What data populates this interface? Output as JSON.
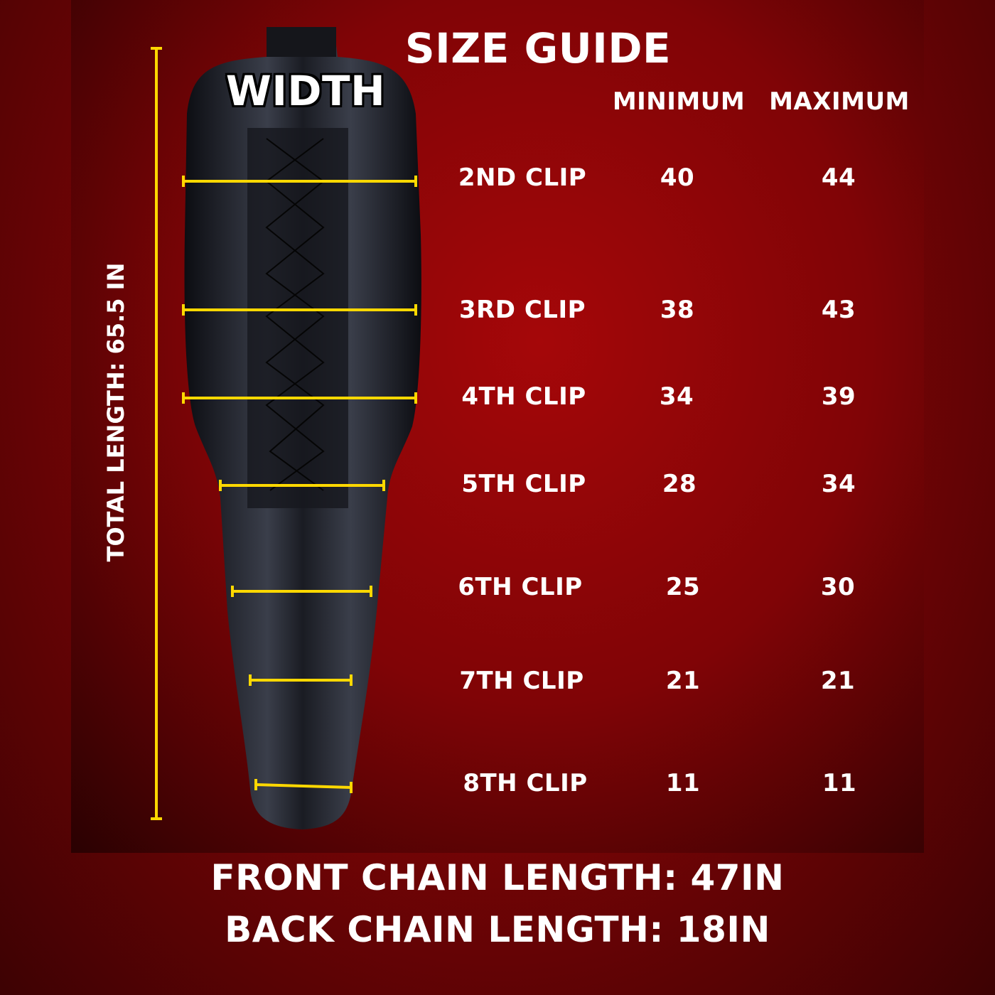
{
  "title": "SIZE GUIDE",
  "width_label": "WIDTH",
  "total_length_label": "TOTAL LENGTH: 65.5 IN",
  "table": {
    "headers": [
      "MINIMUM",
      "MAXIMUM"
    ],
    "rows": [
      {
        "label": "2ND CLIP",
        "min": "40",
        "max": "44"
      },
      {
        "label": "3RD CLIP",
        "min": "38",
        "max": "43"
      },
      {
        "label": "4TH CLIP",
        "min": "34",
        "max": "39"
      },
      {
        "label": "5TH CLIP",
        "min": "28",
        "max": "34"
      },
      {
        "label": "6TH CLIP",
        "min": "25",
        "max": "30"
      },
      {
        "label": "7TH CLIP",
        "min": "21",
        "max": "21"
      },
      {
        "label": "8TH CLIP",
        "min": "11",
        "max": "11"
      }
    ]
  },
  "front_chain": "FRONT CHAIN LENGTH: 47IN",
  "back_chain": "BACK CHAIN LENGTH: 18IN",
  "colors": {
    "background": "#8a0507",
    "measure_line": "#ffd800",
    "text": "#ffffff",
    "garment": "#1c1f27"
  }
}
